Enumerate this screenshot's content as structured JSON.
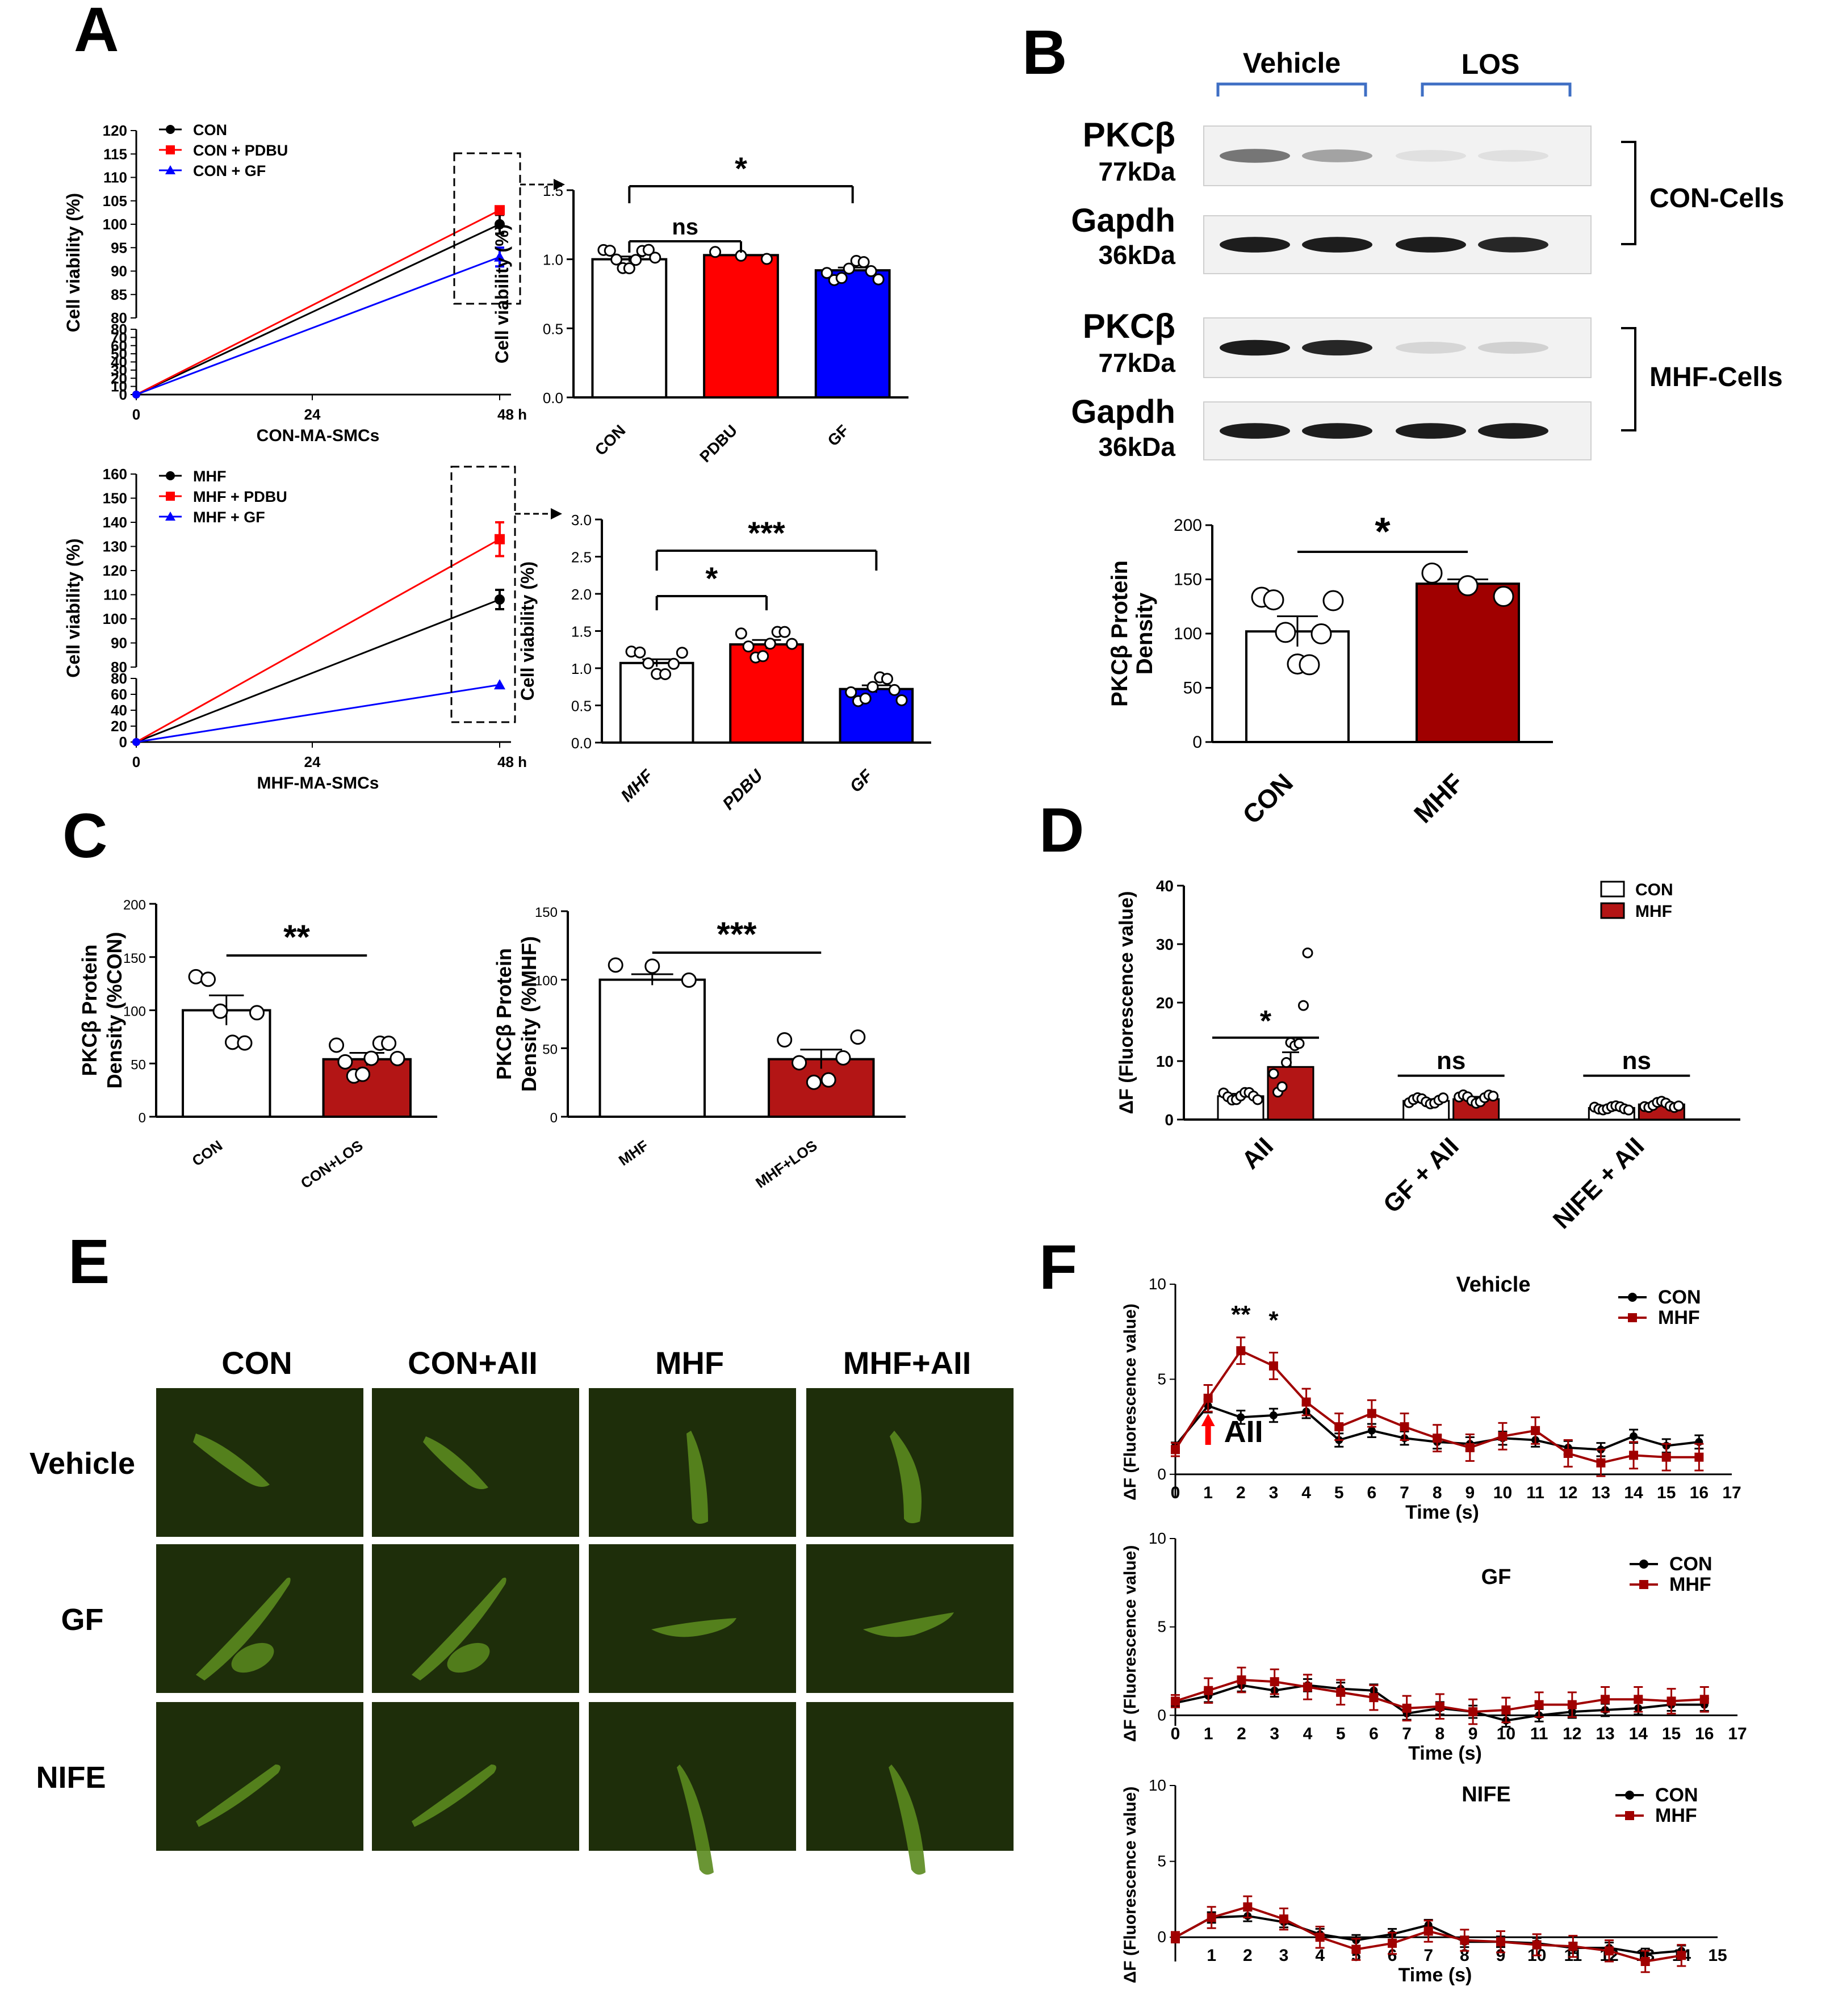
{
  "panels": {
    "A": "A",
    "B": "B",
    "C": "C",
    "D": "D",
    "E": "E",
    "F": "F"
  },
  "colors": {
    "con": "#000000",
    "pdbu": "#ff0000",
    "gf": "#0000ff",
    "mhf_red": "#a00000",
    "dark_red": "#b31515",
    "blot_bg": "#f2f2f2",
    "cell_bg": "#1e2e0a",
    "cell": "#5a8a1e"
  },
  "chart_data": [
    {
      "id": "A1",
      "type": "line",
      "xlabel": "CON-MA-SMCs",
      "ylabel": "Cell viability (%)",
      "x": [
        0,
        48
      ],
      "xticks": [
        "0",
        "24",
        "48 h"
      ],
      "yticks_upper": [
        "80",
        "85",
        "90",
        "95",
        "100",
        "105",
        "110",
        "115",
        "120"
      ],
      "yticks_lower": [
        "0",
        "10",
        "20",
        "30",
        "40",
        "50",
        "60",
        "70",
        "80"
      ],
      "series": [
        {
          "name": "CON",
          "values": [
            0,
            100
          ],
          "err": [
            0,
            2
          ]
        },
        {
          "name": "CON + PDBU",
          "values": [
            0,
            103
          ],
          "err": [
            0,
            0
          ]
        },
        {
          "name": "CON + GF",
          "values": [
            0,
            93
          ],
          "err": [
            0,
            2
          ]
        }
      ]
    },
    {
      "id": "A2",
      "type": "bar",
      "ylabel": "Cell viability (%)",
      "categories": [
        "CON",
        "PDBU",
        "GF"
      ],
      "values": [
        1.0,
        1.03,
        0.92
      ],
      "sem": [
        0.02,
        0.0,
        0.02
      ],
      "ylim": [
        0,
        1.5
      ],
      "yticks": [
        "0.0",
        "0.5",
        "1.0",
        "1.5"
      ],
      "sig": [
        {
          "from": 0,
          "to": 1,
          "label": "ns"
        },
        {
          "from": 0,
          "to": 2,
          "label": "*"
        }
      ]
    },
    {
      "id": "A3",
      "type": "line",
      "xlabel": "MHF-MA-SMCs",
      "ylabel": "Cell viability (%)",
      "x": [
        0,
        48
      ],
      "xticks": [
        "0",
        "24",
        "48 h"
      ],
      "yticks_upper": [
        "80",
        "90",
        "100",
        "110",
        "120",
        "130",
        "140",
        "150",
        "160"
      ],
      "yticks_lower": [
        "0",
        "20",
        "40",
        "60",
        "80"
      ],
      "series": [
        {
          "name": "MHF",
          "values": [
            0,
            108
          ],
          "err": [
            0,
            4
          ]
        },
        {
          "name": "MHF + PDBU",
          "values": [
            0,
            133
          ],
          "err": [
            0,
            7
          ]
        },
        {
          "name": "MHF + GF",
          "values": [
            0,
            72
          ],
          "err": [
            0,
            0
          ]
        }
      ]
    },
    {
      "id": "A4",
      "type": "bar",
      "ylabel": "Cell viability (%)",
      "categories": [
        "MHF",
        "PDBU",
        "GF"
      ],
      "values": [
        1.07,
        1.32,
        0.72
      ],
      "sem": [
        0.05,
        0.06,
        0.05
      ],
      "ylim": [
        0,
        3.0
      ],
      "yticks": [
        "0.0",
        "0.5",
        "1.0",
        "1.5",
        "2.0",
        "2.5",
        "3.0"
      ],
      "sig": [
        {
          "from": 0,
          "to": 1,
          "label": "*"
        },
        {
          "from": 0,
          "to": 2,
          "label": "***"
        }
      ]
    },
    {
      "id": "B",
      "type": "bar",
      "ylabel": "PKCβ Protein Density",
      "categories": [
        "CON",
        "MHF"
      ],
      "values": [
        102,
        146
      ],
      "sem": [
        14,
        4
      ],
      "ylim": [
        0,
        200
      ],
      "yticks": [
        "0",
        "50",
        "100",
        "150",
        "200"
      ],
      "sig": [
        {
          "from": 0,
          "to": 1,
          "label": "*"
        }
      ]
    },
    {
      "id": "C1",
      "type": "bar",
      "ylabel": "PKCβ Protein Density (%CON)",
      "categories": [
        "CON",
        "CON+LOS"
      ],
      "values": [
        100,
        54
      ],
      "sem": [
        14,
        6
      ],
      "ylim": [
        0,
        200
      ],
      "yticks": [
        "0",
        "50",
        "100",
        "150",
        "200"
      ],
      "sig": [
        {
          "from": 0,
          "to": 1,
          "label": "**"
        }
      ]
    },
    {
      "id": "C2",
      "type": "bar",
      "ylabel": "PKCβ Protein Density (%MHF)",
      "categories": [
        "MHF",
        "MHF+LOS"
      ],
      "values": [
        100,
        42
      ],
      "sem": [
        4,
        7
      ],
      "ylim": [
        0,
        150
      ],
      "yticks": [
        "0",
        "50",
        "100",
        "150"
      ],
      "sig": [
        {
          "from": 0,
          "to": 1,
          "label": "***"
        }
      ]
    },
    {
      "id": "D",
      "type": "bar",
      "ylabel": "ΔF (Fluorescence value)",
      "categories": [
        "AII",
        "GF + AII",
        "NIFE + AII"
      ],
      "series": [
        {
          "name": "CON",
          "values": [
            4.0,
            3.2,
            2.0
          ],
          "sem": [
            0.4,
            0.3,
            0.2
          ]
        },
        {
          "name": "MHF",
          "values": [
            9.0,
            3.5,
            2.6
          ],
          "sem": [
            2.5,
            0.4,
            0.3
          ]
        }
      ],
      "ylim": [
        0,
        40
      ],
      "yticks": [
        "0",
        "10",
        "20",
        "30",
        "40"
      ],
      "sig": [
        "*",
        "ns",
        "ns"
      ]
    },
    {
      "id": "F1",
      "type": "line",
      "title": "Vehicle",
      "xlabel": "Time (s)",
      "ylabel": "ΔF (Fluorescence value)",
      "x": [
        0,
        1,
        2,
        3,
        4,
        5,
        6,
        7,
        8,
        9,
        10,
        11,
        12,
        13,
        14,
        15,
        16
      ],
      "xticks": [
        "0",
        "1",
        "2",
        "3",
        "4",
        "5",
        "6",
        "7",
        "8",
        "9",
        "10",
        "11",
        "12",
        "13",
        "14",
        "15",
        "16",
        "17"
      ],
      "ylim": [
        0,
        10
      ],
      "yticks": [
        "0",
        "5",
        "10"
      ],
      "series": [
        {
          "name": "CON",
          "values": [
            1.5,
            3.6,
            3.0,
            3.1,
            3.3,
            1.8,
            2.3,
            1.9,
            1.7,
            1.6,
            1.9,
            1.8,
            1.4,
            1.3,
            2.0,
            1.5,
            1.7
          ]
        },
        {
          "name": "MHF",
          "values": [
            1.3,
            4.0,
            6.5,
            5.7,
            3.8,
            2.5,
            3.2,
            2.5,
            1.9,
            1.4,
            2.0,
            2.3,
            1.1,
            0.6,
            1.0,
            0.9,
            0.9
          ]
        }
      ],
      "annotations": [
        "**",
        "*",
        "AII"
      ]
    },
    {
      "id": "F2",
      "type": "line",
      "title": "GF",
      "xlabel": "Time (s)",
      "ylabel": "ΔF (Fluorescence value)",
      "x": [
        0,
        1,
        2,
        3,
        4,
        5,
        6,
        7,
        8,
        9,
        10,
        11,
        12,
        13,
        14,
        15,
        16
      ],
      "xticks": [
        "0",
        "1",
        "2",
        "3",
        "4",
        "5",
        "6",
        "7",
        "8",
        "9",
        "10",
        "11",
        "12",
        "13",
        "14",
        "15",
        "16",
        "17"
      ],
      "ylim": [
        0,
        10
      ],
      "yticks": [
        "0",
        "5",
        "10"
      ],
      "series": [
        {
          "name": "CON",
          "values": [
            0.7,
            1.1,
            1.7,
            1.4,
            1.7,
            1.5,
            1.4,
            0.1,
            0.4,
            0.2,
            -0.3,
            0.0,
            0.2,
            0.3,
            0.4,
            0.6,
            0.6
          ]
        },
        {
          "name": "MHF",
          "values": [
            0.8,
            1.4,
            2.0,
            1.9,
            1.6,
            1.3,
            1.0,
            0.4,
            0.5,
            0.2,
            0.3,
            0.6,
            0.6,
            0.9,
            0.9,
            0.8,
            0.9
          ]
        }
      ]
    },
    {
      "id": "F3",
      "type": "line",
      "title": "NIFE",
      "xlabel": "Time (s)",
      "ylabel": "ΔF (Fluorescence value)",
      "x": [
        0,
        1,
        2,
        3,
        4,
        5,
        6,
        7,
        8,
        9,
        10,
        11,
        12,
        13,
        14
      ],
      "xticks": [
        "",
        "1",
        "2",
        "3",
        "4",
        "5",
        "6",
        "7",
        "8",
        "9",
        "10",
        "11",
        "12",
        "13",
        "14",
        "15"
      ],
      "ylim": [
        0,
        10
      ],
      "yticks": [
        "0",
        "5",
        "10"
      ],
      "series": [
        {
          "name": "CON",
          "values": [
            0,
            1.3,
            1.4,
            1.0,
            0.2,
            -0.2,
            0.2,
            0.8,
            -0.3,
            -0.3,
            -0.4,
            -0.7,
            -0.7,
            -1.1,
            -0.9
          ]
        },
        {
          "name": "MHF",
          "values": [
            0,
            1.3,
            2.0,
            1.2,
            0.0,
            -0.8,
            -0.4,
            0.4,
            -0.2,
            -0.3,
            -0.5,
            -0.6,
            -0.9,
            -1.6,
            -1.2
          ]
        }
      ]
    }
  ],
  "text": {
    "a_leg1": [
      "CON",
      "CON + PDBU",
      "CON + GF"
    ],
    "a_leg2": [
      "MHF",
      "MHF + PDBU",
      "MHF + GF"
    ],
    "b_vehicle": "Vehicle",
    "b_los": "LOS",
    "b_pkc": "PKCβ",
    "b_77": "77kDa",
    "b_gapdh": "Gapdh",
    "b_36": "36kDa",
    "b_con_cells": "CON-Cells",
    "b_mhf_cells": "MHF-Cells",
    "d_leg": [
      "CON",
      "MHF"
    ],
    "e_cols": [
      "CON",
      "CON+AII",
      "MHF",
      "MHF+AII"
    ],
    "e_rows": [
      "Vehicle",
      "GF",
      "NIFE"
    ],
    "f_leg": [
      "CON",
      "MHF"
    ]
  }
}
